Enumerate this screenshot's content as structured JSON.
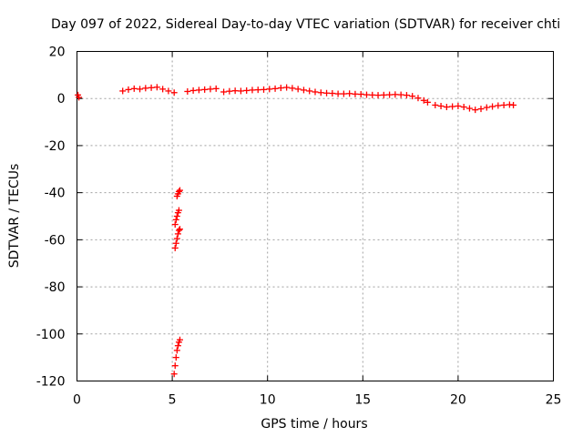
{
  "chart_data": {
    "type": "scatter",
    "title": "Day 097 of 2022, Sidereal Day-to-day VTEC variation (SDTVAR) for receiver chti",
    "xlabel": "GPS time / hours",
    "ylabel": "SDTVAR / TECUs",
    "xlim": [
      0,
      25
    ],
    "ylim": [
      -120,
      20
    ],
    "xticks": [
      0,
      5,
      10,
      15,
      20,
      25
    ],
    "yticks": [
      20,
      0,
      -20,
      -40,
      -60,
      -80,
      -100,
      -120
    ],
    "grid": true,
    "marker": "+",
    "color": "#ff0000",
    "series": [
      {
        "name": "SDTVAR",
        "points": [
          [
            0.05,
            1.5
          ],
          [
            0.1,
            0.5
          ],
          [
            2.4,
            3.2
          ],
          [
            2.7,
            3.8
          ],
          [
            3.0,
            4.2
          ],
          [
            3.3,
            4.0
          ],
          [
            3.6,
            4.4
          ],
          [
            3.9,
            4.6
          ],
          [
            4.2,
            4.8
          ],
          [
            4.5,
            4.0
          ],
          [
            4.8,
            3.2
          ],
          [
            5.1,
            2.5
          ],
          [
            5.8,
            3.0
          ],
          [
            6.1,
            3.4
          ],
          [
            6.4,
            3.6
          ],
          [
            6.7,
            3.8
          ],
          [
            7.0,
            4.0
          ],
          [
            7.3,
            4.2
          ],
          [
            7.7,
            2.8
          ],
          [
            8.0,
            3.1
          ],
          [
            8.3,
            3.3
          ],
          [
            8.6,
            3.2
          ],
          [
            8.9,
            3.4
          ],
          [
            9.2,
            3.6
          ],
          [
            9.5,
            3.7
          ],
          [
            9.8,
            3.8
          ],
          [
            10.1,
            4.0
          ],
          [
            10.4,
            4.2
          ],
          [
            10.7,
            4.5
          ],
          [
            11.0,
            4.7
          ],
          [
            11.3,
            4.4
          ],
          [
            11.6,
            4.0
          ],
          [
            11.9,
            3.6
          ],
          [
            12.2,
            3.2
          ],
          [
            12.5,
            2.8
          ],
          [
            12.8,
            2.5
          ],
          [
            13.1,
            2.3
          ],
          [
            13.4,
            2.2
          ],
          [
            13.7,
            2.0
          ],
          [
            14.0,
            2.0
          ],
          [
            14.3,
            2.1
          ],
          [
            14.6,
            1.9
          ],
          [
            14.9,
            1.8
          ],
          [
            15.2,
            1.6
          ],
          [
            15.5,
            1.5
          ],
          [
            15.8,
            1.4
          ],
          [
            16.1,
            1.5
          ],
          [
            16.4,
            1.6
          ],
          [
            16.7,
            1.7
          ],
          [
            17.0,
            1.6
          ],
          [
            17.3,
            1.4
          ],
          [
            17.6,
            1.0
          ],
          [
            17.9,
            0.2
          ],
          [
            18.2,
            -0.8
          ],
          [
            18.4,
            -1.6
          ],
          [
            18.8,
            -2.8
          ],
          [
            19.1,
            -3.2
          ],
          [
            19.4,
            -3.6
          ],
          [
            19.7,
            -3.4
          ],
          [
            20.0,
            -3.2
          ],
          [
            20.3,
            -3.6
          ],
          [
            20.6,
            -4.2
          ],
          [
            20.9,
            -4.8
          ],
          [
            21.2,
            -4.4
          ],
          [
            21.5,
            -3.8
          ],
          [
            21.8,
            -3.4
          ],
          [
            22.1,
            -3.0
          ],
          [
            22.4,
            -2.8
          ],
          [
            22.7,
            -2.6
          ],
          [
            22.9,
            -2.8
          ],
          [
            5.25,
            -41.5
          ],
          [
            5.3,
            -40.5
          ],
          [
            5.35,
            -39.5
          ],
          [
            5.4,
            -39.0
          ],
          [
            5.15,
            -53.5
          ],
          [
            5.2,
            -51.5
          ],
          [
            5.25,
            -50.0
          ],
          [
            5.3,
            -48.5
          ],
          [
            5.35,
            -47.5
          ],
          [
            5.15,
            -63.5
          ],
          [
            5.2,
            -61.5
          ],
          [
            5.25,
            -59.5
          ],
          [
            5.3,
            -57.5
          ],
          [
            5.35,
            -56.0
          ],
          [
            5.4,
            -55.5
          ],
          [
            5.1,
            -117.0
          ],
          [
            5.15,
            -113.5
          ],
          [
            5.2,
            -110.0
          ],
          [
            5.25,
            -107.0
          ],
          [
            5.3,
            -105.0
          ],
          [
            5.35,
            -103.5
          ],
          [
            5.4,
            -102.5
          ]
        ]
      }
    ]
  }
}
